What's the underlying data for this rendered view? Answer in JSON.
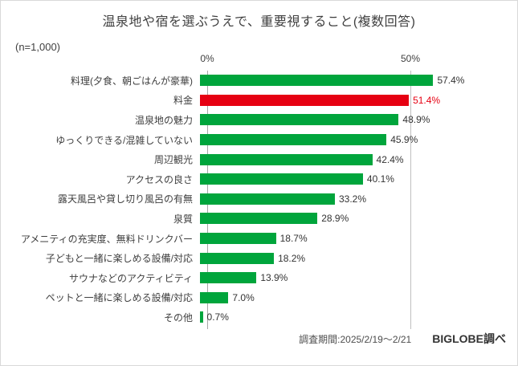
{
  "title": "温泉地や宿を選ぶうえで、重要視すること(複数回答)",
  "sample": "(n=1,000)",
  "axis": {
    "tick0": "0%",
    "tick50": "50%"
  },
  "footer": {
    "period": "調査期間:2025/2/19〜2/21",
    "source": "BIGLOBE調べ"
  },
  "chart_data": {
    "type": "bar",
    "orientation": "horizontal",
    "title": "温泉地や宿を選ぶうえで、重要視すること(複数回答)",
    "sample_size": "n=1,000",
    "categories": [
      "料理(夕食、朝ごはんが豪華)",
      "料金",
      "温泉地の魅力",
      "ゆっくりできる/混雑していない",
      "周辺観光",
      "アクセスの良さ",
      "露天風呂や貸し切り風呂の有無",
      "泉質",
      "アメニティの充実度、無料ドリンクバー",
      "子どもと一緒に楽しめる設備/対応",
      "サウナなどのアクティビティ",
      "ペットと一緒に楽しめる設備/対応",
      "その他"
    ],
    "values": [
      57.4,
      51.4,
      48.9,
      45.9,
      42.4,
      40.1,
      33.2,
      28.9,
      18.7,
      18.2,
      13.9,
      7.0,
      0.7
    ],
    "value_labels": [
      "57.4%",
      "51.4%",
      "48.9%",
      "45.9%",
      "42.4%",
      "40.1%",
      "33.2%",
      "28.9%",
      "18.7%",
      "18.2%",
      "13.9%",
      "7.0%",
      "0.7%"
    ],
    "bar_color": "#00a53c",
    "highlight_index": 1,
    "highlight_color": "#e60012",
    "xlim": [
      0,
      61
    ],
    "gridlines_percent": [
      0,
      50
    ],
    "legend": "none"
  }
}
